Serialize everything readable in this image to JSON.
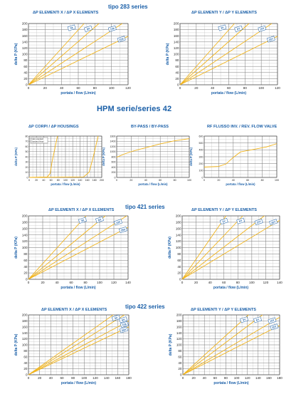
{
  "colors": {
    "line": "#f2b41b",
    "grid": "#7a7a7a",
    "text": "#1a5fa8",
    "badge_bg": "#ffffff",
    "badge_border": "#1a5fa8"
  },
  "sections": {
    "s283": "tipo 283 series",
    "hpm": "HPM serie/series 42",
    "s421": "tipo 421 series",
    "s422": "tipo 422 series"
  },
  "chart_data": [
    {
      "id": "c283x",
      "type": "line",
      "title": "ΔP ELEMENTI X / ΔP X ELEMENTS",
      "xlabel": "portata / flow (L/min)",
      "ylabel": "delta P (KPa)",
      "xlim": [
        0,
        120
      ],
      "ylim": [
        0,
        200
      ],
      "xticks": [
        0,
        20,
        40,
        60,
        80,
        100,
        120
      ],
      "yticks": [
        0,
        20,
        40,
        60,
        80,
        100,
        120,
        140,
        160,
        180,
        200
      ],
      "series": [
        {
          "x": [
            0,
            67
          ],
          "y": [
            0,
            200
          ]
        },
        {
          "x": [
            0,
            85
          ],
          "y": [
            0,
            200
          ]
        },
        {
          "x": [
            0,
            113
          ],
          "y": [
            0,
            200
          ]
        },
        {
          "x": [
            0,
            120
          ],
          "y": [
            0,
            158
          ]
        }
      ],
      "badges": [
        {
          "text": "3X",
          "x": 52,
          "y": 186
        },
        {
          "text": "6X",
          "x": 72,
          "y": 183
        },
        {
          "text": "10X",
          "x": 101,
          "y": 183
        },
        {
          "text": "25X",
          "x": 112,
          "y": 149
        }
      ]
    },
    {
      "id": "c283y",
      "type": "line",
      "title": "ΔP ELEMENTI Y / ΔP Y ELEMENTS",
      "xlabel": "portata / flow (L/min)",
      "ylabel": "delta P (KPa)",
      "xlim": [
        0,
        120
      ],
      "ylim": [
        0,
        200
      ],
      "xticks": [
        0,
        20,
        40,
        60,
        80,
        100,
        120
      ],
      "yticks": [
        0,
        20,
        40,
        60,
        80,
        100,
        120,
        140,
        160,
        180,
        200
      ],
      "series": [
        {
          "x": [
            0,
            67
          ],
          "y": [
            0,
            200
          ]
        },
        {
          "x": [
            0,
            85
          ],
          "y": [
            0,
            200
          ]
        },
        {
          "x": [
            0,
            113
          ],
          "y": [
            0,
            200
          ]
        },
        {
          "x": [
            0,
            120
          ],
          "y": [
            0,
            158
          ]
        }
      ],
      "badges": [
        {
          "text": "3Y",
          "x": 52,
          "y": 186
        },
        {
          "text": "6Y",
          "x": 72,
          "y": 183
        },
        {
          "text": "10Y",
          "x": 101,
          "y": 183
        },
        {
          "text": "25Y",
          "x": 112,
          "y": 149
        }
      ]
    },
    {
      "id": "chpm1",
      "type": "line",
      "title": "ΔP CORPI / ΔP HOUSINGS",
      "xlabel": "portata / flow (L/min)",
      "ylabel": "delta P (KPa)",
      "xlim": [
        0,
        200
      ],
      "ylim": [
        0,
        80
      ],
      "xticks": [
        0,
        20,
        40,
        60,
        80,
        100,
        120,
        140,
        160,
        180,
        200
      ],
      "yticks": [
        0,
        10,
        20,
        30,
        40,
        50,
        60,
        70,
        80
      ],
      "series": [
        {
          "x": [
            0,
            50,
            58,
            63,
            78
          ],
          "y": [
            0,
            1,
            8,
            30,
            80
          ]
        },
        {
          "x": [
            0,
            150,
            165,
            175,
            190
          ],
          "y": [
            0,
            1,
            10,
            35,
            80
          ]
        }
      ],
      "legend_lines": [
        "Cabo standard",
        "Standard Head"
      ]
    },
    {
      "id": "chpm2",
      "type": "line",
      "title": "BY-PASS / BY-PASS",
      "xlabel": "portata / flow (L/min)",
      "ylabel": "delta P (KPa)",
      "xlim": [
        0,
        100
      ],
      "ylim": [
        0,
        1600
      ],
      "xticks": [
        0,
        20,
        40,
        60,
        80,
        100
      ],
      "yticks": [
        0,
        200,
        400,
        600,
        800,
        1000,
        1200,
        1400,
        1600
      ],
      "series": [
        {
          "x": [
            0,
            10,
            20,
            40,
            60,
            80,
            100
          ],
          "y": [
            780,
            900,
            1000,
            1150,
            1300,
            1420,
            1500
          ]
        }
      ]
    },
    {
      "id": "chpm3",
      "type": "line",
      "title": "RF FLUSSO INV. / REV. FLOW VALVE",
      "xlabel": "portata / flow (L/min)",
      "ylabel": "delta P (KPa)",
      "xlim": [
        0,
        100
      ],
      "ylim": [
        0,
        600
      ],
      "xticks": [
        0,
        20,
        40,
        60,
        80,
        100
      ],
      "yticks": [
        0,
        100,
        200,
        300,
        400,
        500,
        600
      ],
      "series": [
        {
          "x": [
            0,
            20,
            30,
            40,
            50,
            70,
            85,
            100
          ],
          "y": [
            150,
            160,
            195,
            290,
            370,
            410,
            440,
            490
          ]
        }
      ]
    },
    {
      "id": "c421x",
      "type": "line",
      "title": "ΔP ELEMENTI X / ΔP X ELEMENTS",
      "xlabel": "portata / flow (L/min)",
      "ylabel": "delta P (KPa)",
      "xlim": [
        0,
        140
      ],
      "ylim": [
        0,
        200
      ],
      "xticks": [
        0,
        20,
        40,
        60,
        80,
        100,
        120,
        140
      ],
      "yticks": [
        0,
        20,
        40,
        60,
        80,
        100,
        120,
        140,
        160,
        180,
        200
      ],
      "series": [
        {
          "x": [
            0,
            81
          ],
          "y": [
            0,
            200
          ]
        },
        {
          "x": [
            0,
            108
          ],
          "y": [
            0,
            200
          ]
        },
        {
          "x": [
            0,
            138
          ],
          "y": [
            0,
            200
          ]
        },
        {
          "x": [
            0,
            140
          ],
          "y": [
            0,
            164
          ]
        }
      ],
      "badges": [
        {
          "text": "3X",
          "x": 76,
          "y": 186
        },
        {
          "text": "6X",
          "x": 100,
          "y": 188
        },
        {
          "text": "10X",
          "x": 126,
          "y": 180
        },
        {
          "text": "25X",
          "x": 133,
          "y": 156
        }
      ]
    },
    {
      "id": "c421y",
      "type": "line",
      "title": "ΔP ELEMENTI Y / ΔP Y ELEMENTS",
      "xlabel": "portata / flow (L/min)",
      "ylabel": "delta P (KPa)",
      "xlim": [
        0,
        140
      ],
      "ylim": [
        0,
        200
      ],
      "xticks": [
        0,
        20,
        40,
        60,
        80,
        100,
        120,
        140
      ],
      "yticks": [
        0,
        20,
        40,
        60,
        80,
        100,
        120,
        140,
        160,
        180,
        200
      ],
      "series": [
        {
          "x": [
            0,
            63
          ],
          "y": [
            0,
            200
          ]
        },
        {
          "x": [
            0,
            87
          ],
          "y": [
            0,
            200
          ]
        },
        {
          "x": [
            0,
            118
          ],
          "y": [
            0,
            200
          ]
        },
        {
          "x": [
            0,
            140
          ],
          "y": [
            0,
            186
          ]
        }
      ],
      "badges": [
        {
          "text": "3Y",
          "x": 60,
          "y": 183
        },
        {
          "text": "6Y",
          "x": 84,
          "y": 184
        },
        {
          "text": "10Y",
          "x": 110,
          "y": 181
        },
        {
          "text": "25Y",
          "x": 131,
          "y": 180
        }
      ]
    },
    {
      "id": "c422x",
      "type": "line",
      "title": "ΔP ELEMENTI X / ΔP X ELEMENTS",
      "xlabel": "portata / flow (L/min)",
      "ylabel": "delta P (KPa)",
      "xlim": [
        0,
        180
      ],
      "ylim": [
        0,
        200
      ],
      "xticks": [
        0,
        20,
        40,
        60,
        80,
        100,
        120,
        140,
        160,
        180
      ],
      "yticks": [
        0,
        20,
        40,
        60,
        80,
        100,
        120,
        140,
        160,
        180,
        200
      ],
      "series": [
        {
          "x": [
            0,
            152
          ],
          "y": [
            0,
            200
          ]
        },
        {
          "x": [
            0,
            172
          ],
          "y": [
            0,
            200
          ]
        },
        {
          "x": [
            0,
            180
          ],
          "y": [
            0,
            180
          ]
        },
        {
          "x": [
            0,
            180
          ],
          "y": [
            0,
            160
          ]
        }
      ],
      "badges": [
        {
          "text": "3X",
          "x": 157,
          "y": 190
        },
        {
          "text": "6X",
          "x": 170,
          "y": 184
        },
        {
          "text": "10X",
          "x": 172,
          "y": 168
        },
        {
          "text": "25X",
          "x": 171,
          "y": 150
        }
      ]
    },
    {
      "id": "c422y",
      "type": "line",
      "title": "ΔP ELEMENTI Y / ΔP Y ELEMENTS",
      "xlabel": "portata / flow (L/min)",
      "ylabel": "delta P (KPa)",
      "xlim": [
        0,
        180
      ],
      "ylim": [
        0,
        200
      ],
      "xticks": [
        0,
        20,
        40,
        60,
        80,
        100,
        120,
        140,
        160,
        180
      ],
      "yticks": [
        0,
        20,
        40,
        60,
        80,
        100,
        120,
        140,
        160,
        180,
        200
      ],
      "series": [
        {
          "x": [
            0,
            122
          ],
          "y": [
            0,
            200
          ]
        },
        {
          "x": [
            0,
            148
          ],
          "y": [
            0,
            200
          ]
        },
        {
          "x": [
            0,
            180
          ],
          "y": [
            0,
            192
          ]
        },
        {
          "x": [
            0,
            180
          ],
          "y": [
            0,
            165
          ]
        }
      ],
      "badges": [
        {
          "text": "3Y",
          "x": 114,
          "y": 184
        },
        {
          "text": "6Y",
          "x": 139,
          "y": 184
        },
        {
          "text": "10Y",
          "x": 166,
          "y": 181
        },
        {
          "text": "25Y",
          "x": 170,
          "y": 160
        }
      ]
    }
  ]
}
